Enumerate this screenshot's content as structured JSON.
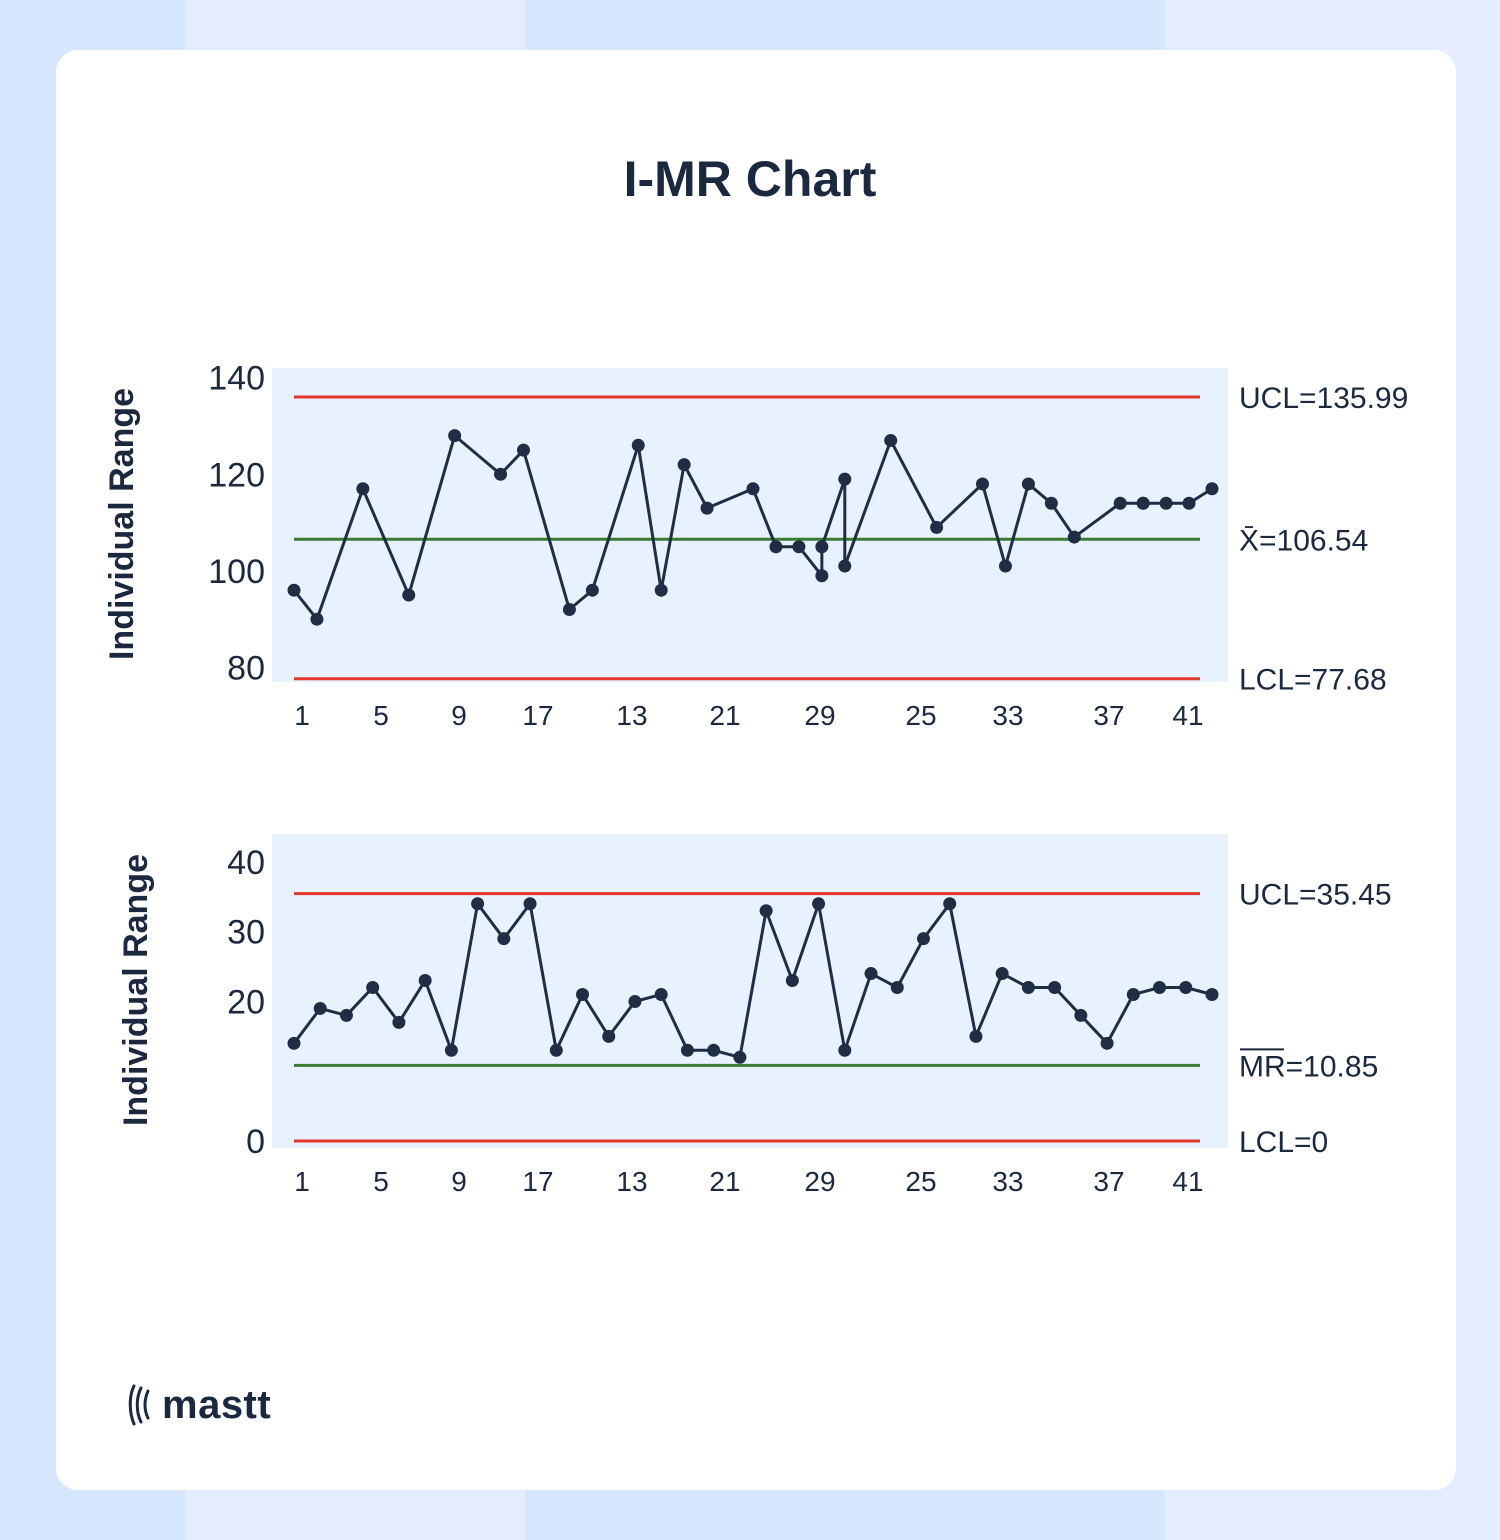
{
  "title": "I-MR Chart",
  "brand": {
    "name": "mastt",
    "icon": "mastt-logo-icon"
  },
  "colors": {
    "panel": "#e8f2fe",
    "line": "#1f2d45",
    "control_limit": "#e3372b",
    "center": "#3a7a33",
    "text": "#1b2940"
  },
  "chart_data": [
    {
      "type": "line",
      "name": "individuals",
      "ylabel": "Individual Range",
      "ylim": [
        77,
        142
      ],
      "yticks": [
        80,
        100,
        120,
        140
      ],
      "x_tick_labels": [
        "1",
        "5",
        "9",
        "17",
        "13",
        "21",
        "29",
        "25",
        "33",
        "37",
        "41"
      ],
      "x": [
        1,
        2,
        4,
        6,
        8,
        10,
        11,
        13,
        14,
        16,
        17,
        18,
        19,
        21,
        22,
        23,
        24,
        24,
        25,
        25,
        27,
        29,
        31,
        32,
        33,
        34,
        35,
        37,
        38,
        38,
        39,
        40,
        41
      ],
      "values": [
        96,
        90,
        117,
        95,
        128,
        120,
        125,
        92,
        96,
        126,
        96,
        122,
        113,
        117,
        105,
        105,
        99,
        105,
        119,
        101,
        127,
        109,
        118,
        101,
        118,
        114,
        107,
        114,
        114,
        114,
        114,
        114,
        117
      ],
      "ucl": 135.99,
      "center": 106.54,
      "lcl": 77.68,
      "ucl_label": "UCL=135.99",
      "center_label": "X̄=106.54",
      "lcl_label": "LCL=77.68"
    },
    {
      "type": "line",
      "name": "moving_range",
      "ylabel": "Individual Range",
      "ylim": [
        -1,
        44
      ],
      "yticks": [
        0,
        20,
        30,
        40
      ],
      "x_tick_labels": [
        "1",
        "5",
        "9",
        "17",
        "13",
        "21",
        "29",
        "25",
        "33",
        "37",
        "41"
      ],
      "x": [
        1,
        2,
        3,
        4,
        5,
        6,
        7,
        8,
        9,
        10,
        11,
        12,
        13,
        14,
        15,
        16,
        17,
        18,
        19,
        20,
        21,
        22,
        23,
        24,
        25,
        26,
        27,
        28,
        29,
        30,
        31,
        32,
        33,
        34,
        35,
        36
      ],
      "values": [
        14,
        19,
        18,
        22,
        17,
        23,
        13,
        34,
        29,
        34,
        13,
        21,
        15,
        20,
        21,
        13,
        13,
        12,
        33,
        23,
        34,
        13,
        24,
        22,
        29,
        34,
        15,
        24,
        22,
        22,
        18,
        14,
        21,
        22,
        22,
        21
      ],
      "ucl": 35.45,
      "center": 10.85,
      "lcl": 0,
      "ucl_label": "UCL=35.45",
      "center_label": "MR=10.85",
      "lcl_label": "LCL=0"
    }
  ]
}
